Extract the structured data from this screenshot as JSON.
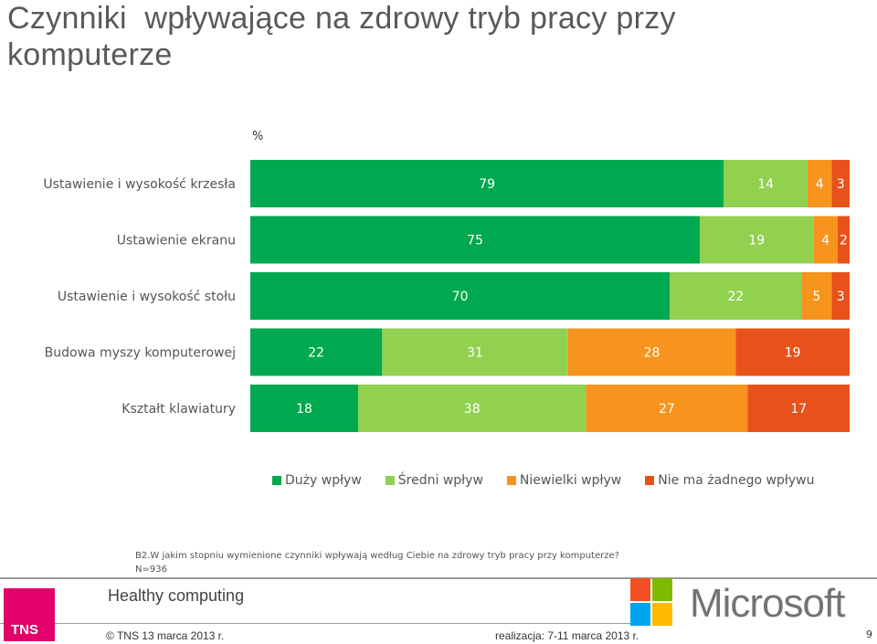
{
  "slide": {
    "title": "Czynniki  wpływające na zdrowy tryb pracy przy komputerze",
    "percent_label": "%",
    "footnote_question": "B2.W jakim stopniu wymienione czynniki  wpływają według Ciebie na zdrowy tryb pracy przy komputerze?",
    "footnote_n": "N=936",
    "project_name": "Healthy computing",
    "copyright": "©  TNS    13 marca 2013 r.",
    "realization": "realizacja: 7-11 marca 2013 r.",
    "page_number": "9",
    "tns_logo_text": "TNS",
    "microsoft_logo_text": "Microsoft"
  },
  "colors": {
    "duzy": "#00a94f",
    "sredni": "#92d050",
    "niewielki": "#f7941d",
    "nie_ma": "#e8521a"
  },
  "chart_data": {
    "type": "bar",
    "orientation": "horizontal",
    "stacked": true,
    "categories": [
      "Ustawienie i wysokość krzesła",
      "Ustawienie ekranu",
      "Ustawienie i wysokość stołu",
      "Budowa myszy komputerowej",
      "Kształt klawiatury"
    ],
    "series": [
      {
        "name": "Duży wpływ",
        "color": "#00a94f",
        "values": [
          79,
          75,
          70,
          22,
          18
        ]
      },
      {
        "name": "Średni wpływ",
        "color": "#92d050",
        "values": [
          14,
          19,
          22,
          31,
          38
        ]
      },
      {
        "name": "Niewielki wpływ",
        "color": "#f7941d",
        "values": [
          4,
          4,
          5,
          28,
          27
        ]
      },
      {
        "name": "Nie ma żadnego wpływu",
        "color": "#e8521a",
        "values": [
          3,
          2,
          3,
          19,
          17
        ]
      }
    ],
    "xlim": [
      0,
      100
    ],
    "legend_position": "bottom",
    "grid": false
  }
}
